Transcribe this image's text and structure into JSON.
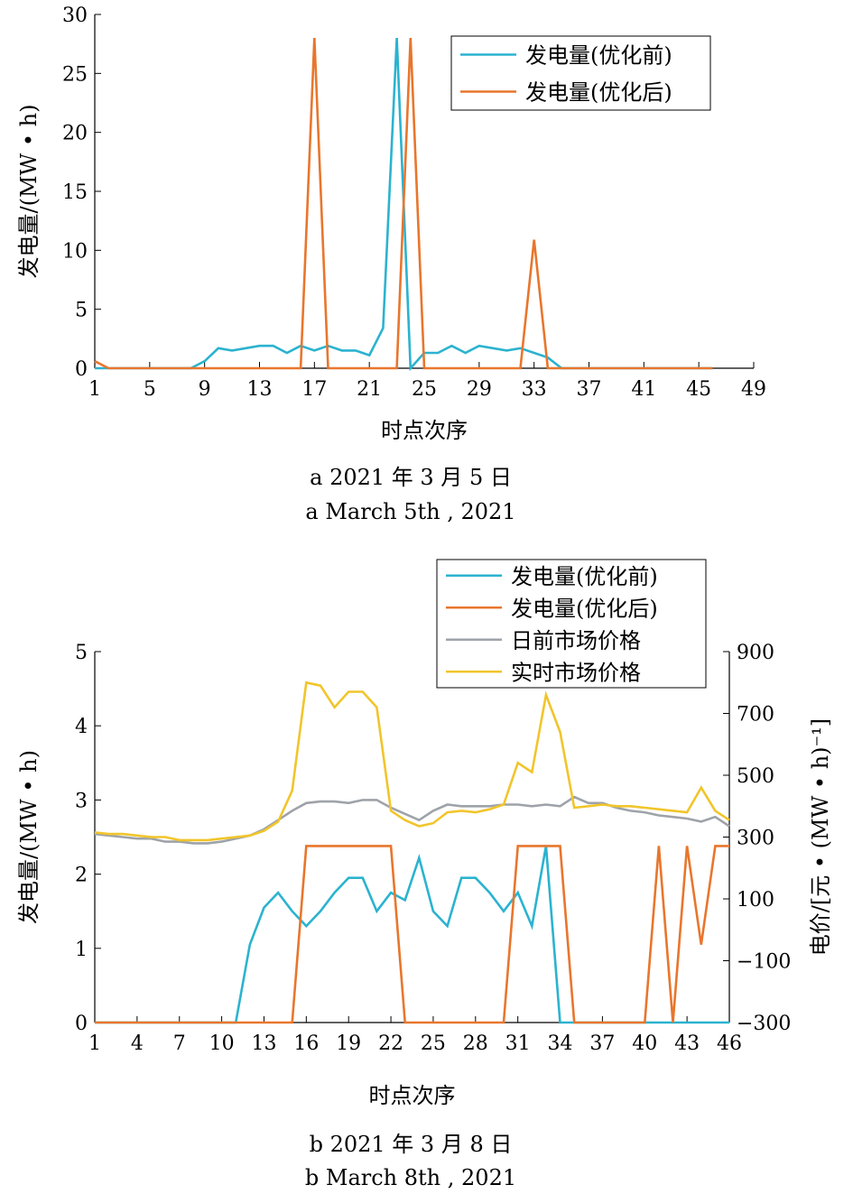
{
  "chart_data": [
    {
      "type": "line",
      "xlabel": "时点次序",
      "ylabel": "发电量/(MW • h)",
      "caption_cn": "a 2021 年 3 月 5 日",
      "caption_en": "a March 5th , 2021",
      "xlim": [
        1,
        49
      ],
      "ylim": [
        0,
        30
      ],
      "xticks": [
        1,
        5,
        9,
        13,
        17,
        21,
        25,
        29,
        33,
        37,
        41,
        45,
        49
      ],
      "yticks": [
        0,
        5,
        10,
        15,
        20,
        25,
        30
      ],
      "legend_position": "top-right",
      "series": [
        {
          "name": "发电量(优化前)",
          "color": "#2bb3cf",
          "x": [
            1,
            2,
            3,
            4,
            5,
            6,
            7,
            8,
            9,
            10,
            11,
            12,
            13,
            14,
            15,
            16,
            17,
            18,
            19,
            20,
            21,
            22,
            23,
            24,
            25,
            26,
            27,
            28,
            29,
            30,
            31,
            32,
            33,
            34,
            35,
            36,
            37,
            38,
            39,
            40,
            41,
            42,
            43,
            44,
            45,
            46
          ],
          "y": [
            0,
            0,
            0,
            0,
            0,
            0,
            0,
            0,
            0.6,
            1.7,
            1.5,
            1.7,
            1.9,
            1.9,
            1.3,
            1.9,
            1.5,
            1.9,
            1.5,
            1.5,
            1.1,
            3.4,
            28,
            0,
            1.3,
            1.3,
            1.9,
            1.3,
            1.9,
            1.7,
            1.5,
            1.7,
            1.3,
            0.9,
            0,
            0,
            0,
            0,
            0,
            0,
            0,
            0,
            0,
            0,
            0,
            0
          ]
        },
        {
          "name": "发电量(优化后)",
          "color": "#e8762d",
          "x": [
            1,
            2,
            3,
            4,
            5,
            6,
            7,
            8,
            9,
            10,
            11,
            12,
            13,
            14,
            15,
            16,
            17,
            18,
            19,
            20,
            21,
            22,
            23,
            24,
            25,
            26,
            27,
            28,
            29,
            30,
            31,
            32,
            33,
            34,
            35,
            36,
            37,
            38,
            39,
            40,
            41,
            42,
            43,
            44,
            45,
            46
          ],
          "y": [
            0.6,
            0,
            0,
            0,
            0,
            0,
            0,
            0,
            0,
            0,
            0,
            0,
            0,
            0,
            0,
            0,
            28,
            0,
            0,
            0,
            0,
            0,
            0,
            28,
            0,
            0,
            0,
            0,
            0,
            0,
            0,
            0,
            10.9,
            0,
            0,
            0,
            0,
            0,
            0,
            0,
            0,
            0,
            0,
            0,
            0,
            0
          ]
        }
      ]
    },
    {
      "type": "line",
      "xlabel": "时点次序",
      "ylabel": "发电量/(MW • h)",
      "ylabel_right": "电价/[元 • (MW • h)⁻¹]",
      "caption_cn": "b 2021 年 3 月 8 日",
      "caption_en": "b March 8th , 2021",
      "xlim": [
        1,
        46
      ],
      "ylim": [
        0,
        5
      ],
      "ylim_right": [
        -300,
        900
      ],
      "xticks": [
        1,
        4,
        7,
        10,
        13,
        16,
        19,
        22,
        25,
        28,
        31,
        34,
        37,
        40,
        43,
        46
      ],
      "yticks": [
        0,
        1,
        2,
        3,
        4,
        5
      ],
      "yticks_right": [
        -300,
        -100,
        100,
        300,
        500,
        700,
        900
      ],
      "legend_position": "top-right",
      "series": [
        {
          "name": "发电量(优化前)",
          "axis": "left",
          "color": "#2bb3cf",
          "x": [
            1,
            2,
            3,
            4,
            5,
            6,
            7,
            8,
            9,
            10,
            11,
            12,
            13,
            14,
            15,
            16,
            17,
            18,
            19,
            20,
            21,
            22,
            23,
            24,
            25,
            26,
            27,
            28,
            29,
            30,
            31,
            32,
            33,
            34,
            35,
            36,
            37,
            38,
            39,
            40,
            41,
            42,
            43,
            44,
            45,
            46
          ],
          "y": [
            0,
            0,
            0,
            0,
            0,
            0,
            0,
            0,
            0,
            0,
            0,
            1.05,
            1.55,
            1.75,
            1.5,
            1.3,
            1.5,
            1.75,
            1.95,
            1.95,
            1.5,
            1.75,
            1.65,
            2.22,
            1.5,
            1.3,
            1.95,
            1.95,
            1.75,
            1.5,
            1.75,
            1.3,
            2.38,
            0,
            0,
            0,
            0,
            0,
            0,
            0,
            0,
            0,
            0,
            0,
            0,
            0
          ]
        },
        {
          "name": "发电量(优化后)",
          "axis": "left",
          "color": "#e8762d",
          "x": [
            1,
            2,
            3,
            4,
            5,
            6,
            7,
            8,
            9,
            10,
            11,
            12,
            13,
            14,
            15,
            16,
            17,
            18,
            19,
            20,
            21,
            22,
            23,
            24,
            25,
            26,
            27,
            28,
            29,
            30,
            31,
            32,
            33,
            34,
            35,
            36,
            37,
            38,
            39,
            40,
            41,
            42,
            43,
            44,
            45,
            46
          ],
          "y": [
            0,
            0,
            0,
            0,
            0,
            0,
            0,
            0,
            0,
            0,
            0,
            0,
            0,
            0,
            0,
            2.38,
            2.38,
            2.38,
            2.38,
            2.38,
            2.38,
            2.38,
            0,
            0,
            0,
            0,
            0,
            0,
            0,
            0,
            2.38,
            2.38,
            2.38,
            2.38,
            0,
            0,
            0,
            0,
            0,
            0,
            2.38,
            0,
            2.38,
            1.05,
            2.38,
            2.38
          ]
        },
        {
          "name": "日前市场价格",
          "axis": "right",
          "color": "#9ea3a9",
          "x": [
            1,
            2,
            3,
            4,
            5,
            6,
            7,
            8,
            9,
            10,
            11,
            12,
            13,
            14,
            15,
            16,
            17,
            18,
            19,
            20,
            21,
            22,
            23,
            24,
            25,
            26,
            27,
            28,
            29,
            30,
            31,
            32,
            33,
            34,
            35,
            36,
            37,
            38,
            39,
            40,
            41,
            42,
            43,
            44,
            45,
            46
          ],
          "y": [
            310,
            305,
            300,
            295,
            295,
            285,
            285,
            280,
            280,
            285,
            295,
            305,
            325,
            355,
            385,
            410,
            415,
            415,
            410,
            420,
            420,
            395,
            375,
            355,
            385,
            405,
            400,
            400,
            400,
            405,
            405,
            400,
            405,
            400,
            430,
            410,
            410,
            395,
            385,
            380,
            370,
            365,
            360,
            350,
            365,
            335
          ]
        },
        {
          "name": "实时市场价格",
          "axis": "right",
          "color": "#f1c52b",
          "x": [
            1,
            2,
            3,
            4,
            5,
            6,
            7,
            8,
            9,
            10,
            11,
            12,
            13,
            14,
            15,
            16,
            17,
            18,
            19,
            20,
            21,
            22,
            23,
            24,
            25,
            26,
            27,
            28,
            29,
            30,
            31,
            32,
            33,
            34,
            35,
            36,
            37,
            38,
            39,
            40,
            41,
            42,
            43,
            44,
            45,
            46
          ],
          "y": [
            315,
            310,
            310,
            305,
            300,
            300,
            290,
            290,
            290,
            295,
            300,
            305,
            320,
            350,
            450,
            800,
            790,
            720,
            770,
            770,
            720,
            385,
            355,
            335,
            345,
            380,
            385,
            380,
            390,
            405,
            540,
            510,
            760,
            640,
            395,
            400,
            405,
            400,
            400,
            395,
            390,
            385,
            380,
            460,
            385,
            355
          ]
        }
      ]
    }
  ]
}
